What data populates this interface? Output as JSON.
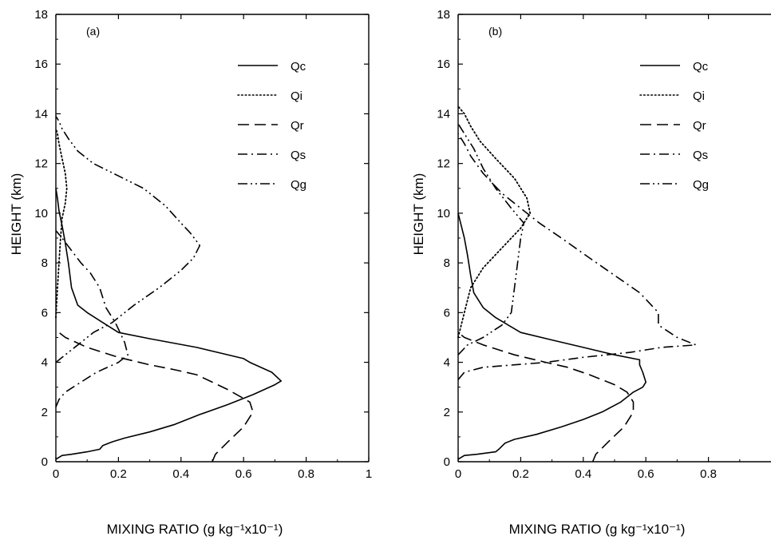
{
  "chart_data": [
    {
      "type": "line",
      "panel_label": "(a)",
      "xlabel": "MIXING RATIO (g kg⁻¹x10⁻¹)",
      "ylabel": "HEIGHT (km)",
      "xlim": [
        0,
        1
      ],
      "ylim": [
        0,
        18
      ],
      "xticks": [
        "0",
        "0.2",
        "0.4",
        "0.6",
        "0.8",
        "1"
      ],
      "yticks": [
        "0",
        "2",
        "4",
        "6",
        "8",
        "10",
        "12",
        "14",
        "16",
        "18"
      ],
      "legend_position": "top-right",
      "grid": false,
      "series": [
        {
          "name": "Qc",
          "style": "solid",
          "points": [
            [
              0,
              0.1
            ],
            [
              0.02,
              0.25
            ],
            [
              0.05,
              0.3
            ],
            [
              0.1,
              0.4
            ],
            [
              0.14,
              0.5
            ],
            [
              0.15,
              0.65
            ],
            [
              0.18,
              0.8
            ],
            [
              0.22,
              0.95
            ],
            [
              0.3,
              1.2
            ],
            [
              0.38,
              1.5
            ],
            [
              0.46,
              1.9
            ],
            [
              0.55,
              2.3
            ],
            [
              0.63,
              2.7
            ],
            [
              0.7,
              3.1
            ],
            [
              0.72,
              3.25
            ],
            [
              0.69,
              3.6
            ],
            [
              0.62,
              4.0
            ],
            [
              0.6,
              4.15
            ],
            [
              0.45,
              4.6
            ],
            [
              0.3,
              4.95
            ],
            [
              0.2,
              5.2
            ],
            [
              0.15,
              5.6
            ],
            [
              0.1,
              6.0
            ],
            [
              0.07,
              6.3
            ],
            [
              0.05,
              7.0
            ],
            [
              0.04,
              8.0
            ],
            [
              0.03,
              8.8
            ],
            [
              0.02,
              9.5
            ],
            [
              0.01,
              10.1
            ],
            [
              0.005,
              10.6
            ],
            [
              0,
              11.0
            ]
          ]
        },
        {
          "name": "Qi",
          "style": "dotted",
          "points": [
            [
              0,
              5.8
            ],
            [
              0.005,
              7.0
            ],
            [
              0.01,
              8.0
            ],
            [
              0.015,
              9.0
            ],
            [
              0.02,
              9.8
            ],
            [
              0.03,
              10.4
            ],
            [
              0.035,
              11.0
            ],
            [
              0.03,
              11.6
            ],
            [
              0.02,
              12.2
            ],
            [
              0.01,
              12.8
            ],
            [
              0.005,
              13.2
            ],
            [
              0,
              13.4
            ]
          ]
        },
        {
          "name": "Qr",
          "style": "dashed",
          "points": [
            [
              0.5,
              0
            ],
            [
              0.51,
              0.3
            ],
            [
              0.55,
              0.8
            ],
            [
              0.6,
              1.4
            ],
            [
              0.63,
              2.0
            ],
            [
              0.62,
              2.4
            ],
            [
              0.55,
              2.9
            ],
            [
              0.5,
              3.2
            ],
            [
              0.45,
              3.5
            ],
            [
              0.38,
              3.7
            ],
            [
              0.3,
              3.9
            ],
            [
              0.2,
              4.2
            ],
            [
              0.1,
              4.6
            ],
            [
              0.03,
              5.0
            ],
            [
              0,
              5.3
            ]
          ]
        },
        {
          "name": "Qs",
          "style": "dashdot",
          "points": [
            [
              0,
              2.2
            ],
            [
              0.01,
              2.5
            ],
            [
              0.03,
              2.8
            ],
            [
              0.08,
              3.2
            ],
            [
              0.13,
              3.6
            ],
            [
              0.2,
              4.0
            ],
            [
              0.23,
              4.3
            ],
            [
              0.22,
              4.8
            ],
            [
              0.19,
              5.6
            ],
            [
              0.16,
              6.2
            ],
            [
              0.14,
              7.0
            ],
            [
              0.11,
              7.6
            ],
            [
              0.08,
              8.0
            ],
            [
              0.05,
              8.5
            ],
            [
              0.02,
              9.0
            ],
            [
              0,
              9.3
            ]
          ]
        },
        {
          "name": "Qg",
          "style": "dashdotdot",
          "points": [
            [
              0,
              4.0
            ],
            [
              0.03,
              4.3
            ],
            [
              0.08,
              4.8
            ],
            [
              0.12,
              5.2
            ],
            [
              0.18,
              5.6
            ],
            [
              0.25,
              6.3
            ],
            [
              0.33,
              7.0
            ],
            [
              0.4,
              7.7
            ],
            [
              0.44,
              8.2
            ],
            [
              0.46,
              8.7
            ],
            [
              0.43,
              9.2
            ],
            [
              0.4,
              9.6
            ],
            [
              0.35,
              10.3
            ],
            [
              0.28,
              11.0
            ],
            [
              0.2,
              11.5
            ],
            [
              0.12,
              12.0
            ],
            [
              0.07,
              12.5
            ],
            [
              0.04,
              13.0
            ],
            [
              0.02,
              13.4
            ],
            [
              0.01,
              13.7
            ],
            [
              0,
              13.9
            ]
          ]
        }
      ]
    },
    {
      "type": "line",
      "panel_label": "(b)",
      "xlabel": "MIXING RATIO (g kg⁻¹x10⁻¹)",
      "ylabel": "HEIGHT (km)",
      "xlim": [
        0,
        1
      ],
      "ylim": [
        0,
        18
      ],
      "xticks": [
        "0",
        "0.2",
        "0.4",
        "0.6",
        "0.8"
      ],
      "yticks": [
        "0",
        "2",
        "4",
        "6",
        "8",
        "10",
        "12",
        "14",
        "16",
        "18"
      ],
      "legend_position": "top-right",
      "grid": false,
      "series": [
        {
          "name": "Qc",
          "style": "solid",
          "points": [
            [
              0,
              0.1
            ],
            [
              0.02,
              0.25
            ],
            [
              0.06,
              0.3
            ],
            [
              0.12,
              0.4
            ],
            [
              0.13,
              0.5
            ],
            [
              0.15,
              0.75
            ],
            [
              0.18,
              0.9
            ],
            [
              0.25,
              1.1
            ],
            [
              0.33,
              1.4
            ],
            [
              0.4,
              1.7
            ],
            [
              0.46,
              2.0
            ],
            [
              0.52,
              2.4
            ],
            [
              0.56,
              2.8
            ],
            [
              0.59,
              3.0
            ],
            [
              0.6,
              3.2
            ],
            [
              0.59,
              3.6
            ],
            [
              0.58,
              3.9
            ],
            [
              0.58,
              4.1
            ],
            [
              0.5,
              4.3
            ],
            [
              0.4,
              4.6
            ],
            [
              0.3,
              4.9
            ],
            [
              0.2,
              5.2
            ],
            [
              0.16,
              5.5
            ],
            [
              0.12,
              5.8
            ],
            [
              0.08,
              6.2
            ],
            [
              0.05,
              6.8
            ],
            [
              0.04,
              7.5
            ],
            [
              0.03,
              8.3
            ],
            [
              0.02,
              9.0
            ],
            [
              0.01,
              9.5
            ],
            [
              0,
              10.0
            ]
          ]
        },
        {
          "name": "Qi",
          "style": "dotted",
          "points": [
            [
              0,
              5.0
            ],
            [
              0.02,
              6.0
            ],
            [
              0.04,
              7.0
            ],
            [
              0.08,
              7.8
            ],
            [
              0.14,
              8.6
            ],
            [
              0.2,
              9.4
            ],
            [
              0.23,
              10.0
            ],
            [
              0.22,
              10.6
            ],
            [
              0.18,
              11.4
            ],
            [
              0.12,
              12.2
            ],
            [
              0.07,
              12.9
            ],
            [
              0.04,
              13.5
            ],
            [
              0.02,
              14.0
            ],
            [
              0,
              14.3
            ]
          ]
        },
        {
          "name": "Qr",
          "style": "dashed",
          "points": [
            [
              0.43,
              0
            ],
            [
              0.44,
              0.3
            ],
            [
              0.48,
              0.8
            ],
            [
              0.53,
              1.4
            ],
            [
              0.56,
              2.0
            ],
            [
              0.56,
              2.4
            ],
            [
              0.54,
              2.8
            ],
            [
              0.5,
              3.1
            ],
            [
              0.42,
              3.5
            ],
            [
              0.35,
              3.8
            ],
            [
              0.28,
              4.0
            ],
            [
              0.18,
              4.3
            ],
            [
              0.08,
              4.7
            ],
            [
              0.02,
              5.0
            ],
            [
              0,
              5.2
            ]
          ]
        },
        {
          "name": "Qs",
          "style": "dashdot",
          "points": [
            [
              0,
              3.3
            ],
            [
              0.02,
              3.6
            ],
            [
              0.08,
              3.8
            ],
            [
              0.18,
              3.9
            ],
            [
              0.28,
              4.0
            ],
            [
              0.4,
              4.2
            ],
            [
              0.55,
              4.4
            ],
            [
              0.65,
              4.6
            ],
            [
              0.76,
              4.7
            ],
            [
              0.7,
              5.0
            ],
            [
              0.64,
              5.5
            ],
            [
              0.64,
              6.0
            ],
            [
              0.58,
              6.8
            ],
            [
              0.5,
              7.5
            ],
            [
              0.42,
              8.2
            ],
            [
              0.33,
              9.0
            ],
            [
              0.26,
              9.6
            ],
            [
              0.2,
              10.2
            ],
            [
              0.14,
              10.8
            ],
            [
              0.08,
              11.6
            ],
            [
              0.04,
              12.3
            ],
            [
              0.02,
              12.8
            ],
            [
              0,
              13.2
            ]
          ]
        },
        {
          "name": "Qg",
          "style": "dashdotdot",
          "points": [
            [
              0,
              4.3
            ],
            [
              0.03,
              4.7
            ],
            [
              0.08,
              5.0
            ],
            [
              0.14,
              5.5
            ],
            [
              0.17,
              6.0
            ],
            [
              0.18,
              7.0
            ],
            [
              0.19,
              8.0
            ],
            [
              0.2,
              9.0
            ],
            [
              0.21,
              9.6
            ],
            [
              0.17,
              10.2
            ],
            [
              0.12,
              11.0
            ],
            [
              0.08,
              11.8
            ],
            [
              0.05,
              12.6
            ],
            [
              0.02,
              13.2
            ],
            [
              0,
              13.6
            ]
          ]
        }
      ]
    }
  ]
}
